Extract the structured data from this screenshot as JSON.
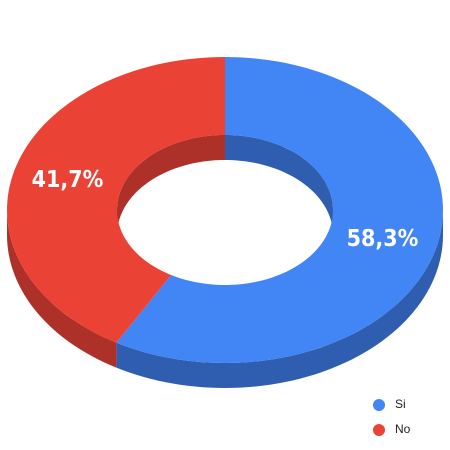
{
  "chart_data": {
    "type": "donut3d",
    "categories": [
      "Si",
      "No"
    ],
    "values": [
      58.3,
      41.7
    ],
    "value_labels": [
      "58,3%",
      "41,7%"
    ],
    "colors": [
      "#4285f4",
      "#ea4335"
    ],
    "side_colors": [
      "#2f5eb0",
      "#ad3029"
    ],
    "legend": "bottom-right"
  }
}
